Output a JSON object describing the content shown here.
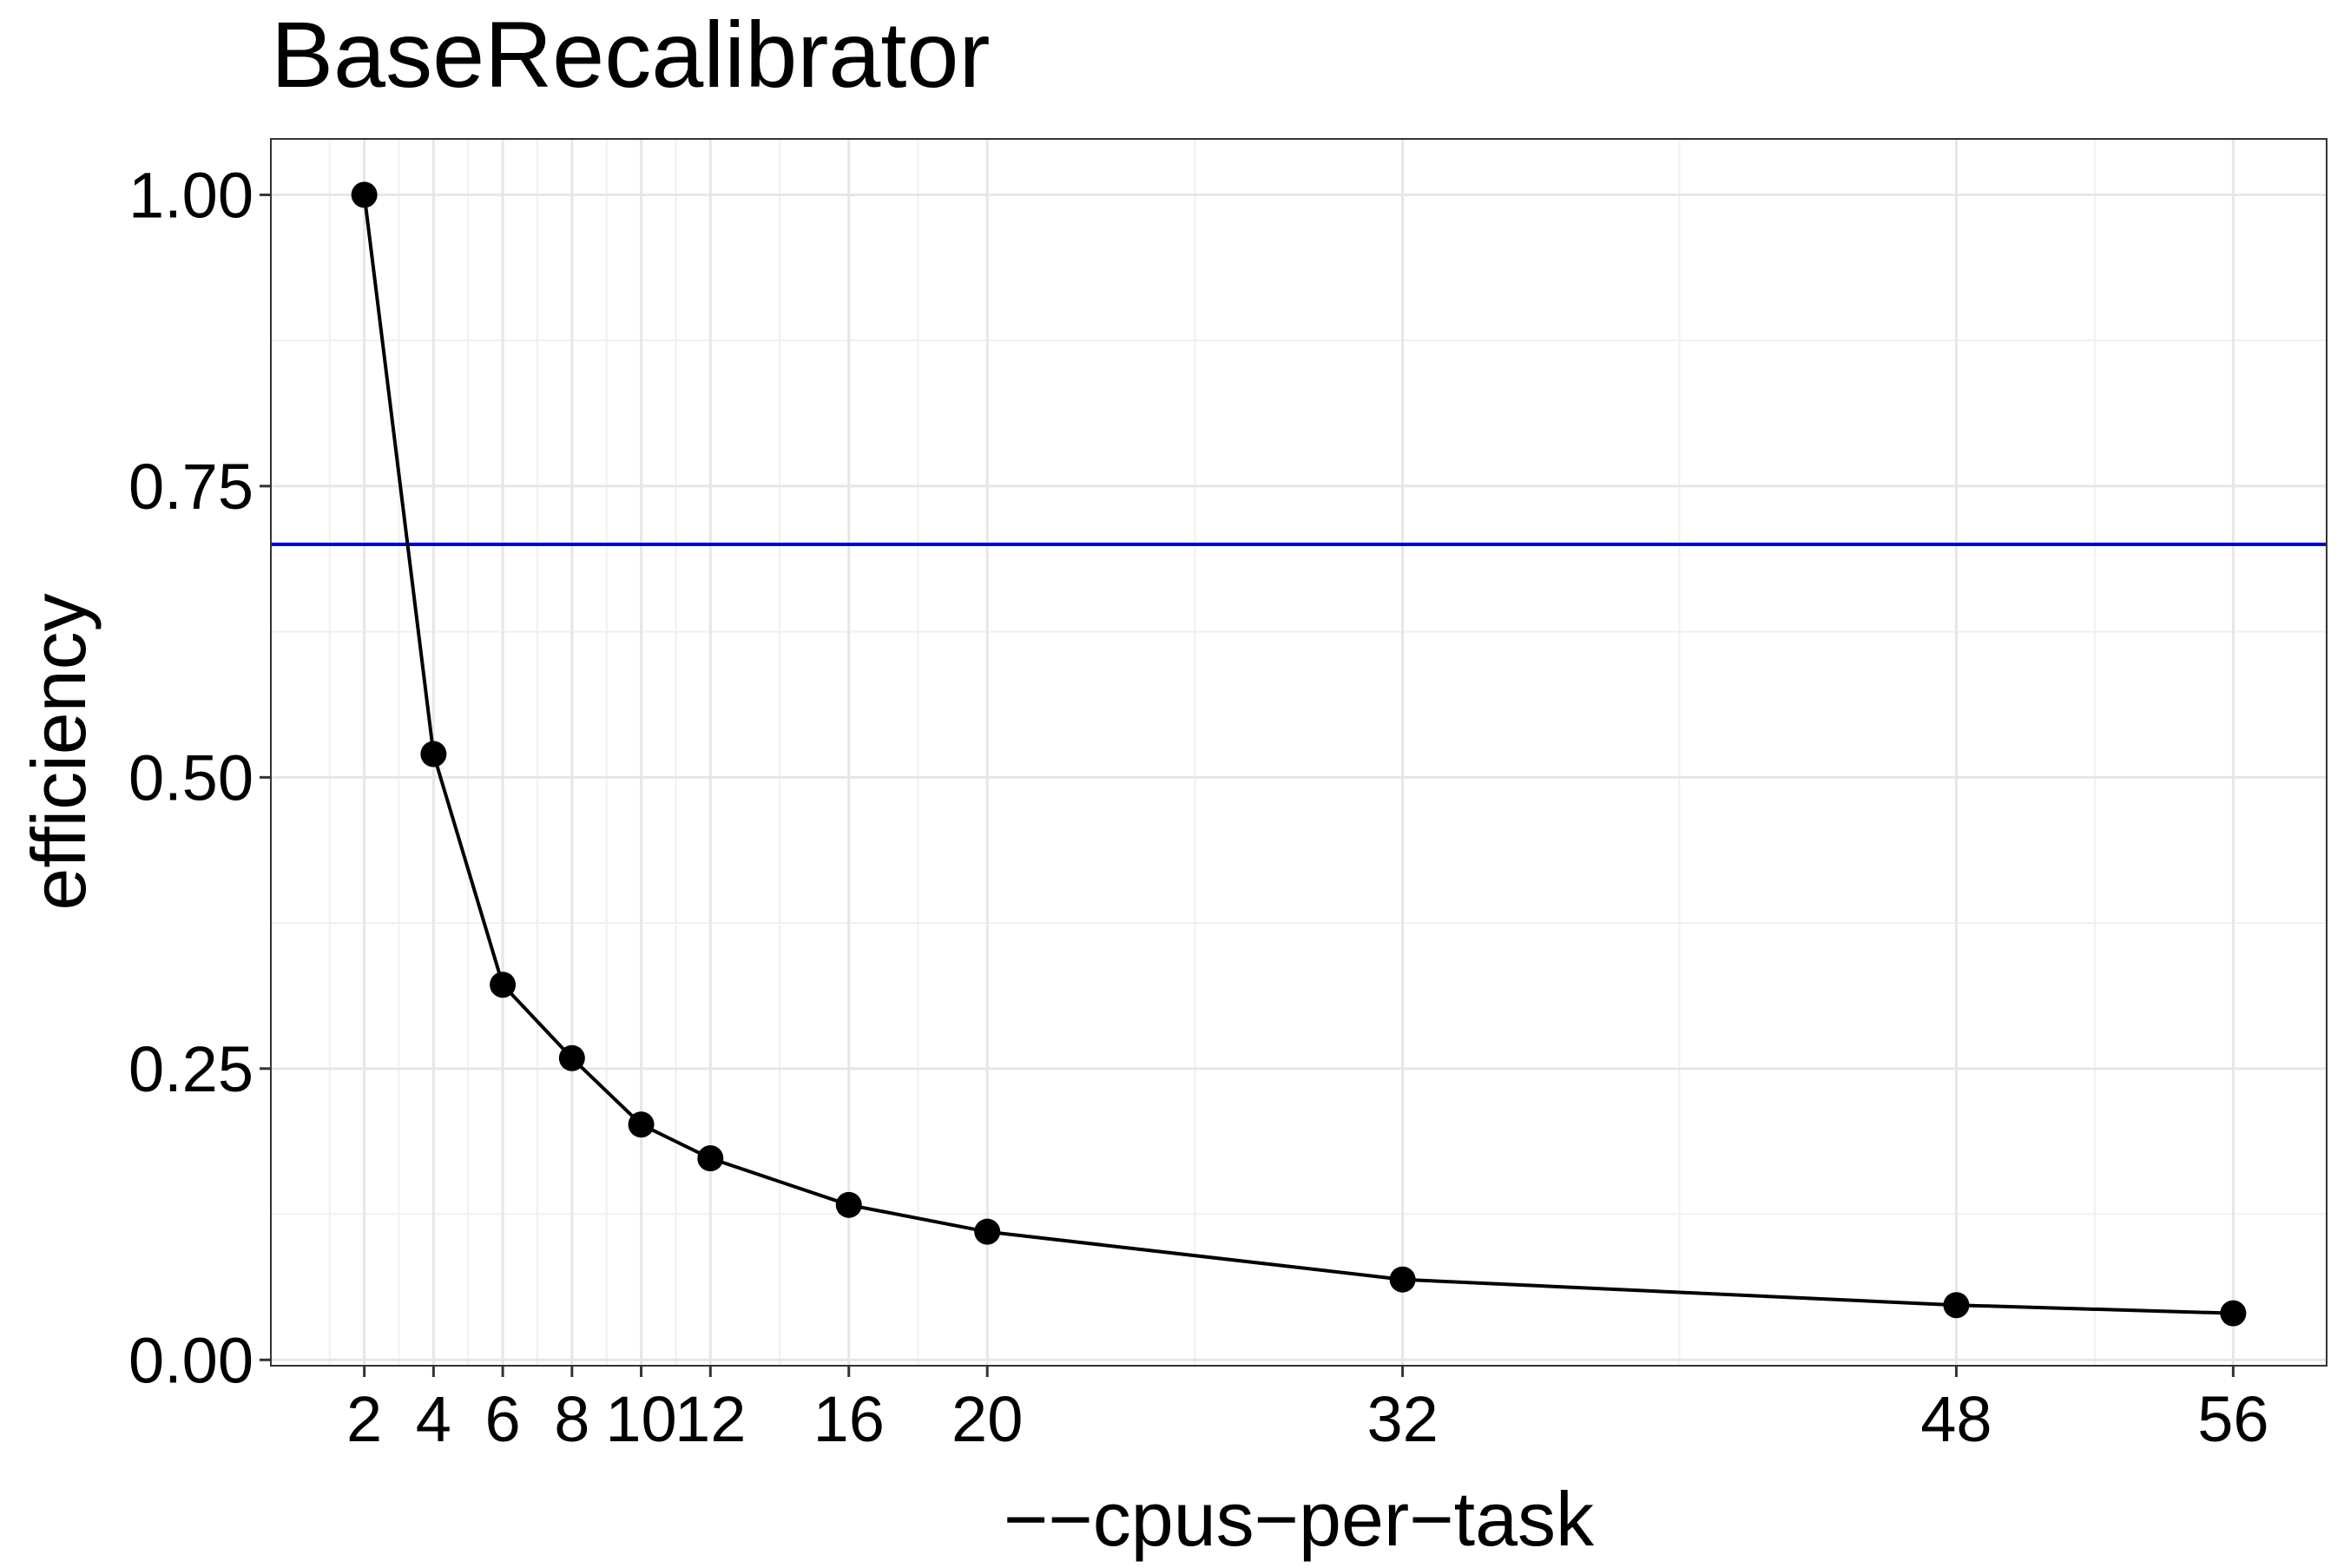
{
  "chart_data": {
    "type": "line",
    "title": "BaseRecalibrator",
    "xlabel": "−−cpus−per−task",
    "ylabel": "efficiency",
    "x_ticks": [
      2,
      4,
      6,
      8,
      10,
      12,
      16,
      20,
      32,
      48,
      56
    ],
    "x_tick_labels": [
      "2",
      "4",
      "6",
      "8",
      "10",
      "12",
      "16",
      "20",
      "32",
      "48",
      "56"
    ],
    "y_ticks": [
      0,
      0.25,
      0.5,
      0.75,
      1.0
    ],
    "y_tick_labels": [
      "0.00",
      "0.25",
      "0.50",
      "0.75",
      "1.00"
    ],
    "xlim": [
      -0.7,
      58.7
    ],
    "ylim": [
      -0.005,
      1.048
    ],
    "grid": true,
    "series": [
      {
        "x": [
          2,
          4,
          6,
          8,
          10,
          12,
          16,
          20,
          32,
          48,
          56
        ],
        "y": [
          1.0,
          0.52,
          0.322,
          0.259,
          0.202,
          0.173,
          0.133,
          0.11,
          0.069,
          0.047,
          0.04
        ],
        "color": "#000000"
      }
    ],
    "reference_line": {
      "axis": "y",
      "value": 0.7,
      "color": "#0000CC"
    }
  }
}
